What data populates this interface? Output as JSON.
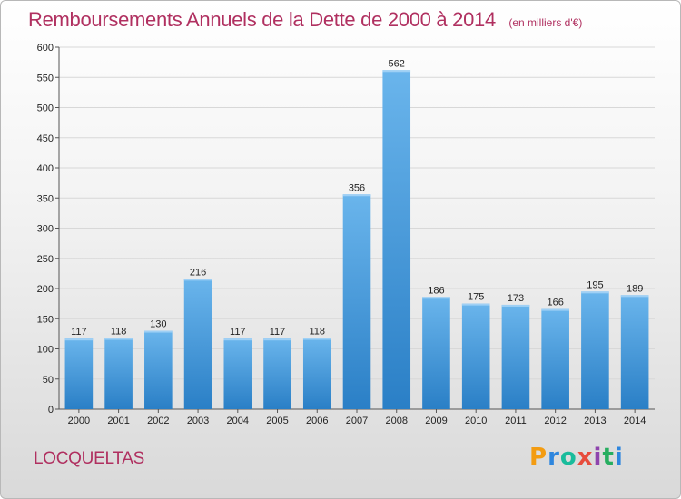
{
  "header": {
    "title": "Remboursements Annuels de la Dette de 2000 à 2014",
    "subtitle": "(en milliers d'€)"
  },
  "footer": {
    "commune": "LOCQUELTAS",
    "brand": "Proxiti",
    "brand_colors": [
      "#f39c12",
      "#2e86de",
      "#1abc9c",
      "#e74c3c",
      "#8e44ad",
      "#27ae60",
      "#2e86de"
    ]
  },
  "colors": {
    "bar_light": "#6ab5ec",
    "bar_dark": "#2a7fc6",
    "title": "#b03060",
    "grid": "#d8d8d8"
  },
  "chart_data": {
    "type": "bar",
    "title": "Remboursements Annuels de la Dette de 2000 à 2014",
    "subtitle": "(en milliers d'€)",
    "xlabel": "",
    "ylabel": "",
    "categories": [
      "2000",
      "2001",
      "2002",
      "2003",
      "2004",
      "2005",
      "2006",
      "2007",
      "2008",
      "2009",
      "2010",
      "2011",
      "2012",
      "2013",
      "2014"
    ],
    "values": [
      117,
      118,
      130,
      216,
      117,
      117,
      118,
      356,
      562,
      186,
      175,
      173,
      166,
      195,
      189
    ],
    "ylim": [
      0,
      600
    ],
    "yticks": [
      0,
      50,
      100,
      150,
      200,
      250,
      300,
      350,
      400,
      450,
      500,
      550,
      600
    ],
    "grid": true,
    "legend": "none"
  }
}
